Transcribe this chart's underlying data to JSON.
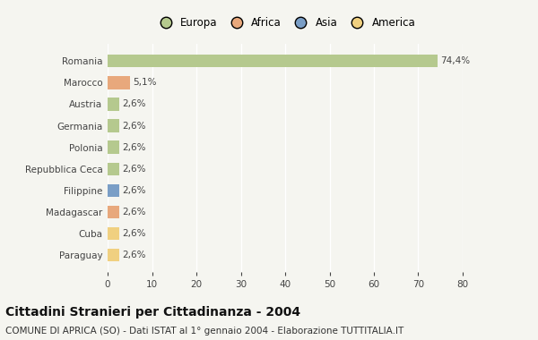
{
  "categories": [
    "Romania",
    "Marocco",
    "Austria",
    "Germania",
    "Polonia",
    "Repubblica Ceca",
    "Filippine",
    "Madagascar",
    "Cuba",
    "Paraguay"
  ],
  "values": [
    74.4,
    5.1,
    2.6,
    2.6,
    2.6,
    2.6,
    2.6,
    2.6,
    2.6,
    2.6
  ],
  "labels": [
    "74,4%",
    "5,1%",
    "2,6%",
    "2,6%",
    "2,6%",
    "2,6%",
    "2,6%",
    "2,6%",
    "2,6%",
    "2,6%"
  ],
  "bar_colors": [
    "#b5c98e",
    "#e8a87c",
    "#b5c98e",
    "#b5c98e",
    "#b5c98e",
    "#b5c98e",
    "#7a9ec6",
    "#e8a87c",
    "#f0d080",
    "#f0d080"
  ],
  "legend_labels": [
    "Europa",
    "Africa",
    "Asia",
    "America"
  ],
  "legend_colors": [
    "#b5c98e",
    "#e8a87c",
    "#7a9ec6",
    "#f0d080"
  ],
  "xlim": [
    0,
    80
  ],
  "xticks": [
    0,
    10,
    20,
    30,
    40,
    50,
    60,
    70,
    80
  ],
  "title": "Cittadini Stranieri per Cittadinanza - 2004",
  "subtitle": "COMUNE DI APRICA (SO) - Dati ISTAT al 1° gennaio 2004 - Elaborazione TUTTITALIA.IT",
  "background_color": "#f5f5f0",
  "grid_color": "#ffffff",
  "bar_height": 0.6,
  "title_fontsize": 10,
  "subtitle_fontsize": 7.5,
  "label_fontsize": 7.5,
  "tick_fontsize": 7.5,
  "legend_fontsize": 8.5
}
